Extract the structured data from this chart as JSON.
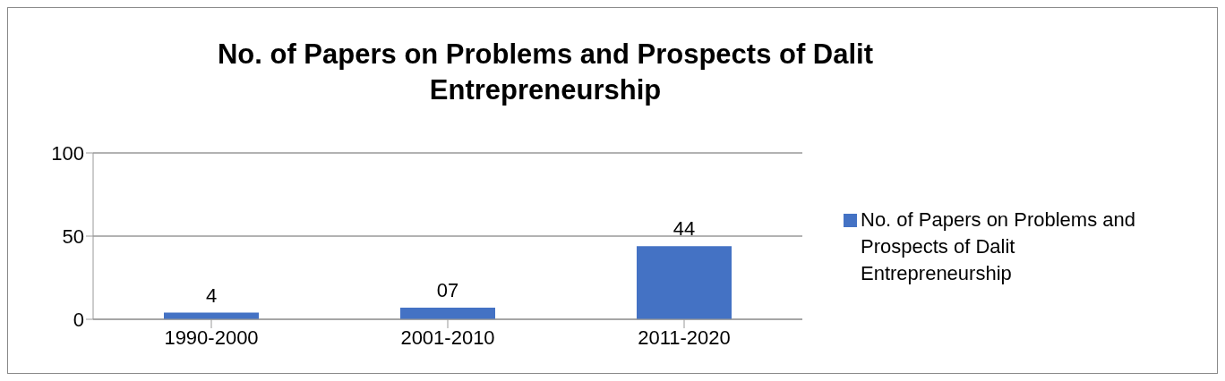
{
  "chart_data": {
    "type": "bar",
    "title": "No. of Papers on Problems and Prospects of Dalit Entrepreneurship",
    "categories": [
      "1990-2000",
      "2001-2010",
      "2011-2020"
    ],
    "series": [
      {
        "name": "No. of Papers on Problems and Prospects of Dalit Entrepreneurship",
        "color": "#4472c4",
        "values": [
          4,
          7,
          44
        ],
        "value_labels": [
          "4",
          "07",
          "44"
        ]
      }
    ],
    "ylim": [
      0,
      100
    ],
    "yticks": [
      0,
      50,
      100
    ],
    "grid": "y",
    "legend": "right"
  }
}
